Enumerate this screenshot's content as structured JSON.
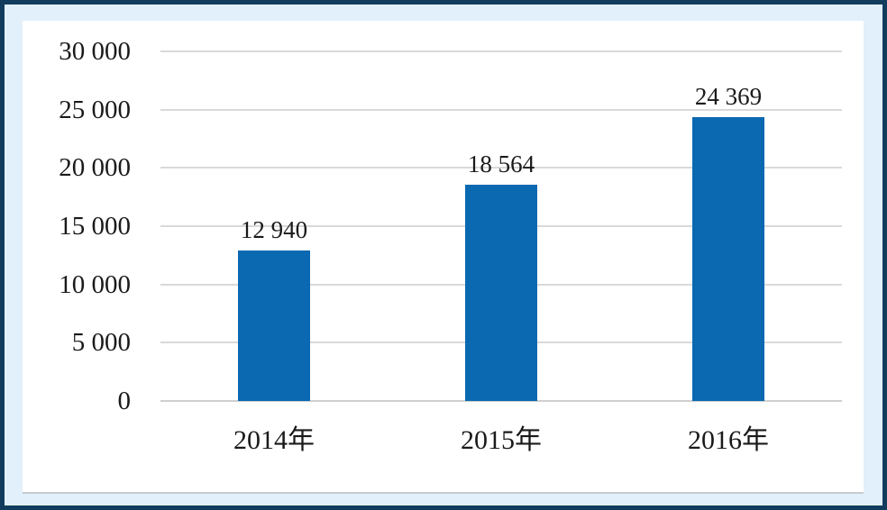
{
  "chart_data": {
    "type": "bar",
    "title": "",
    "categories": [
      "2014年",
      "2015年",
      "2016年"
    ],
    "values": [
      12940,
      18564,
      24369
    ],
    "value_labels": [
      "12 940",
      "18 564",
      "24 369"
    ],
    "y_ticks": [
      {
        "value": 30000,
        "label": "30 000"
      },
      {
        "value": 25000,
        "label": "25 000"
      },
      {
        "value": 20000,
        "label": "20 000"
      },
      {
        "value": 15000,
        "label": "15 000"
      },
      {
        "value": 10000,
        "label": "10 000"
      },
      {
        "value": 5000,
        "label": "5 000"
      },
      {
        "value": 0,
        "label": "0"
      }
    ],
    "ylim": [
      0,
      30000
    ],
    "grid": "horizontal-only",
    "legend": "none",
    "colors": {
      "bar_fill": "#0A69B1",
      "gridline": "#D9D9D9",
      "frame_border": "#123C5E",
      "frame_background": "#E1F0FA",
      "plot_background": "#FFFFFF",
      "text": "#1A1A1A"
    }
  }
}
